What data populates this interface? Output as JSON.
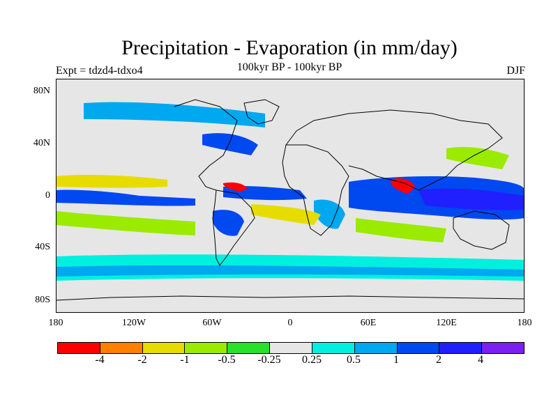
{
  "header": {
    "title": "Precipitation - Evaporation (in mm/day)",
    "subtitle": "100kyr BP - 100kyr BP",
    "expt": "Expt = tdzd4-tdxo4",
    "season": "DJF"
  },
  "map": {
    "lat_ticks": [
      "80N",
      "40N",
      "0",
      "40S",
      "80S"
    ],
    "lon_ticks": [
      "180",
      "120W",
      "60W",
      "0",
      "60E",
      "120E",
      "180"
    ],
    "background_color": "#e6e6e6",
    "coastline_color": "#000000"
  },
  "legend": {
    "colors": [
      "#ff0000",
      "#ff8000",
      "#e6dc00",
      "#9aeb00",
      "#2ae02a",
      "#e6e6e6",
      "#00f0e0",
      "#00a8f0",
      "#0048f0",
      "#2020ff",
      "#7a20f0"
    ],
    "labels": [
      "-4",
      "-2",
      "-1",
      "-0.5",
      "-0.25",
      "0.25",
      "0.5",
      "1",
      "2",
      "4"
    ]
  }
}
